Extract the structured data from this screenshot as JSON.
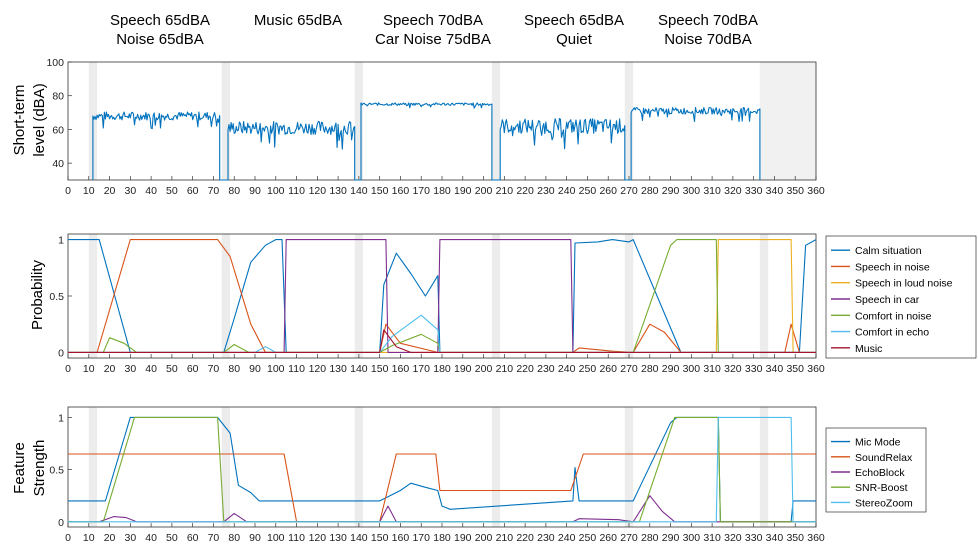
{
  "segments": [
    {
      "line1": "Speech 65dBA",
      "line2": "Noise 65dBA"
    },
    {
      "line1": "Music 65dBA",
      "line2": ""
    },
    {
      "line1": "Speech 70dBA",
      "line2": "Car Noise 75dBA"
    },
    {
      "line1": "Speech 65dBA",
      "line2": "Quiet"
    },
    {
      "line1": "Speech 70dBA",
      "line2": "Noise 70dBA"
    }
  ],
  "colors": {
    "blue": "#0072BD",
    "orange": "#D95319",
    "yellow": "#EDB120",
    "purple": "#7E2F8E",
    "green": "#77AC30",
    "cyan": "#4DBEEE",
    "red": "#A2142F"
  },
  "chart_data": [
    {
      "type": "line",
      "ylabel": "Short-term level (dBA)",
      "xlim": [
        0,
        360
      ],
      "ylim": [
        30,
        100
      ],
      "xticks": [
        0,
        10,
        20,
        30,
        40,
        50,
        60,
        70,
        80,
        90,
        100,
        110,
        120,
        130,
        140,
        150,
        160,
        170,
        180,
        190,
        200,
        210,
        220,
        230,
        240,
        250,
        260,
        270,
        280,
        290,
        300,
        310,
        320,
        330,
        340,
        350,
        360
      ],
      "yticks": [
        40,
        60,
        80,
        100
      ],
      "series": [
        {
          "name": "",
          "color": "blue",
          "segments": [
            {
              "start": 12,
              "end": 73,
              "mean": 68,
              "noise": 2.5
            },
            {
              "start": 77,
              "end": 138,
              "mean": 61,
              "noise": 4
            },
            {
              "start": 141,
              "end": 204,
              "mean": 75,
              "noise": 0.8
            },
            {
              "start": 208,
              "end": 268,
              "mean": 62,
              "noise": 4.5
            },
            {
              "start": 271,
              "end": 333,
              "mean": 71,
              "noise": 2
            }
          ],
          "floor": 30
        }
      ]
    },
    {
      "type": "line",
      "ylabel": "Probability",
      "xlim": [
        0,
        360
      ],
      "ylim": [
        -0.05,
        1.05
      ],
      "xticks": [
        0,
        10,
        20,
        30,
        40,
        50,
        60,
        70,
        80,
        90,
        100,
        110,
        120,
        130,
        140,
        150,
        160,
        170,
        180,
        190,
        200,
        210,
        220,
        230,
        240,
        250,
        260,
        270,
        280,
        290,
        300,
        310,
        320,
        330,
        340,
        350,
        360
      ],
      "yticks": [
        0,
        0.5,
        1
      ],
      "ytick_labels": [
        "0",
        "0.5",
        "1"
      ],
      "legend": [
        "Calm situation",
        "Speech in noise",
        "Speech in loud noise",
        "Speech in car",
        "Comfort in noise",
        "Comfort in echo",
        "Music"
      ],
      "series": [
        {
          "name": "Calm situation",
          "color": "blue",
          "points": [
            [
              0,
              1
            ],
            [
              12,
              1
            ],
            [
              15,
              1
            ],
            [
              30,
              0
            ],
            [
              33,
              0
            ],
            [
              75,
              0
            ],
            [
              80,
              0.3
            ],
            [
              88,
              0.8
            ],
            [
              95,
              0.95
            ],
            [
              100,
              1
            ],
            [
              103,
              1
            ],
            [
              105,
              0
            ],
            [
              150,
              0
            ],
            [
              152,
              0.6
            ],
            [
              158,
              0.88
            ],
            [
              165,
              0.7
            ],
            [
              172,
              0.5
            ],
            [
              178,
              0.68
            ],
            [
              179,
              0
            ],
            [
              243,
              0
            ],
            [
              244,
              0.97
            ],
            [
              255,
              0.98
            ],
            [
              262,
              1
            ],
            [
              270,
              0.98
            ],
            [
              272,
              1
            ],
            [
              295,
              0
            ],
            [
              352,
              0
            ],
            [
              355,
              0.95
            ],
            [
              360,
              1
            ]
          ]
        },
        {
          "name": "Speech in noise",
          "color": "orange",
          "points": [
            [
              0,
              0
            ],
            [
              14,
              0
            ],
            [
              30,
              1
            ],
            [
              72,
              1
            ],
            [
              78,
              0.85
            ],
            [
              88,
              0.25
            ],
            [
              95,
              0
            ],
            [
              150,
              0
            ],
            [
              153,
              0.25
            ],
            [
              160,
              0.08
            ],
            [
              178,
              0
            ],
            [
              243,
              0
            ],
            [
              246,
              0.04
            ],
            [
              262,
              0.01
            ],
            [
              272,
              0
            ],
            [
              280,
              0.25
            ],
            [
              287,
              0.18
            ],
            [
              295,
              0
            ],
            [
              345,
              0
            ],
            [
              348,
              0.25
            ],
            [
              352,
              0
            ],
            [
              360,
              0
            ]
          ]
        },
        {
          "name": "Speech in loud noise",
          "color": "yellow",
          "points": [
            [
              0,
              0
            ],
            [
              312,
              0
            ],
            [
              313,
              1
            ],
            [
              348,
              1
            ],
            [
              349,
              0
            ],
            [
              360,
              0
            ]
          ]
        },
        {
          "name": "Speech in car",
          "color": "purple",
          "points": [
            [
              0,
              0
            ],
            [
              104,
              0
            ],
            [
              105,
              1
            ],
            [
              153,
              1
            ],
            [
              154,
              0
            ],
            [
              178,
              0
            ],
            [
              179,
              1
            ],
            [
              242,
              1
            ],
            [
              243,
              0
            ],
            [
              360,
              0
            ]
          ]
        },
        {
          "name": "Comfort in noise",
          "color": "green",
          "points": [
            [
              0,
              0
            ],
            [
              17,
              0
            ],
            [
              20,
              0.13
            ],
            [
              27,
              0.08
            ],
            [
              33,
              0
            ],
            [
              75,
              0
            ],
            [
              80,
              0.07
            ],
            [
              87,
              0
            ],
            [
              150,
              0
            ],
            [
              156,
              0.06
            ],
            [
              170,
              0.16
            ],
            [
              178,
              0.08
            ],
            [
              179,
              0
            ],
            [
              272,
              0
            ],
            [
              290,
              0.95
            ],
            [
              293,
              1
            ],
            [
              312,
              1
            ],
            [
              313,
              0
            ],
            [
              360,
              0
            ]
          ]
        },
        {
          "name": "Comfort in echo",
          "color": "cyan",
          "points": [
            [
              0,
              0
            ],
            [
              90,
              0
            ],
            [
              95,
              0.05
            ],
            [
              100,
              0
            ],
            [
              150,
              0
            ],
            [
              156,
              0.14
            ],
            [
              170,
              0.33
            ],
            [
              178,
              0.2
            ],
            [
              179,
              0
            ],
            [
              360,
              0
            ]
          ]
        },
        {
          "name": "Music",
          "color": "red",
          "points": [
            [
              0,
              0
            ],
            [
              150,
              0
            ],
            [
              152,
              0.2
            ],
            [
              158,
              0.05
            ],
            [
              165,
              0
            ],
            [
              360,
              0
            ]
          ]
        }
      ]
    },
    {
      "type": "line",
      "ylabel": "Feature Strength",
      "xlim": [
        0,
        360
      ],
      "ylim": [
        -0.05,
        1.1
      ],
      "xticks": [
        0,
        10,
        20,
        30,
        40,
        50,
        60,
        70,
        80,
        90,
        100,
        110,
        120,
        130,
        140,
        150,
        160,
        170,
        180,
        190,
        200,
        210,
        220,
        230,
        240,
        250,
        260,
        270,
        280,
        290,
        300,
        310,
        320,
        330,
        340,
        350,
        360
      ],
      "yticks": [
        0,
        0.5,
        1
      ],
      "ytick_labels": [
        "0",
        "0.5",
        "1"
      ],
      "legend": [
        "Mic Mode",
        "SoundRelax",
        "EchoBlock",
        "SNR-Boost",
        "StereoZoom"
      ],
      "series": [
        {
          "name": "Mic Mode",
          "color": "blue",
          "points": [
            [
              0,
              0.2
            ],
            [
              18,
              0.2
            ],
            [
              30,
              1
            ],
            [
              72,
              1
            ],
            [
              78,
              0.85
            ],
            [
              82,
              0.35
            ],
            [
              88,
              0.28
            ],
            [
              92,
              0.2
            ],
            [
              150,
              0.2
            ],
            [
              160,
              0.3
            ],
            [
              165,
              0.37
            ],
            [
              172,
              0.33
            ],
            [
              178,
              0.3
            ],
            [
              180,
              0.15
            ],
            [
              184,
              0.12
            ],
            [
              243,
              0.2
            ],
            [
              244,
              0.52
            ],
            [
              246,
              0.2
            ],
            [
              272,
              0.2
            ],
            [
              290,
              0.95
            ],
            [
              293,
              1
            ],
            [
              313,
              1
            ],
            [
              314,
              0
            ],
            [
              348,
              0
            ],
            [
              349,
              0.2
            ],
            [
              360,
              0.2
            ]
          ]
        },
        {
          "name": "SoundRelax",
          "color": "orange",
          "points": [
            [
              0,
              0.65
            ],
            [
              72,
              0.65
            ],
            [
              73,
              0.65
            ],
            [
              104,
              0.65
            ],
            [
              110,
              0
            ],
            [
              150,
              0
            ],
            [
              158,
              0.65
            ],
            [
              177,
              0.65
            ],
            [
              179,
              0.3
            ],
            [
              242,
              0.3
            ],
            [
              248,
              0.65
            ],
            [
              360,
              0.65
            ]
          ]
        },
        {
          "name": "EchoBlock",
          "color": "purple",
          "points": [
            [
              0,
              0
            ],
            [
              15,
              0
            ],
            [
              22,
              0.05
            ],
            [
              28,
              0.04
            ],
            [
              33,
              0
            ],
            [
              75,
              0
            ],
            [
              80,
              0.08
            ],
            [
              86,
              0
            ],
            [
              150,
              0
            ],
            [
              154,
              0.15
            ],
            [
              158,
              0
            ],
            [
              243,
              0
            ],
            [
              246,
              0.03
            ],
            [
              265,
              0.02
            ],
            [
              272,
              0
            ],
            [
              280,
              0.25
            ],
            [
              286,
              0.1
            ],
            [
              292,
              0
            ],
            [
              360,
              0
            ]
          ]
        },
        {
          "name": "SNR-Boost",
          "color": "green",
          "points": [
            [
              0,
              0
            ],
            [
              17,
              0
            ],
            [
              32,
              1
            ],
            [
              72,
              1
            ],
            [
              75,
              0
            ],
            [
              275,
              0
            ],
            [
              292,
              1
            ],
            [
              313,
              1
            ],
            [
              314,
              0
            ],
            [
              360,
              0
            ]
          ]
        },
        {
          "name": "StereoZoom",
          "color": "cyan",
          "points": [
            [
              0,
              0
            ],
            [
              312,
              0
            ],
            [
              313,
              1
            ],
            [
              348,
              1
            ],
            [
              349,
              0
            ],
            [
              360,
              0
            ]
          ]
        }
      ]
    }
  ]
}
